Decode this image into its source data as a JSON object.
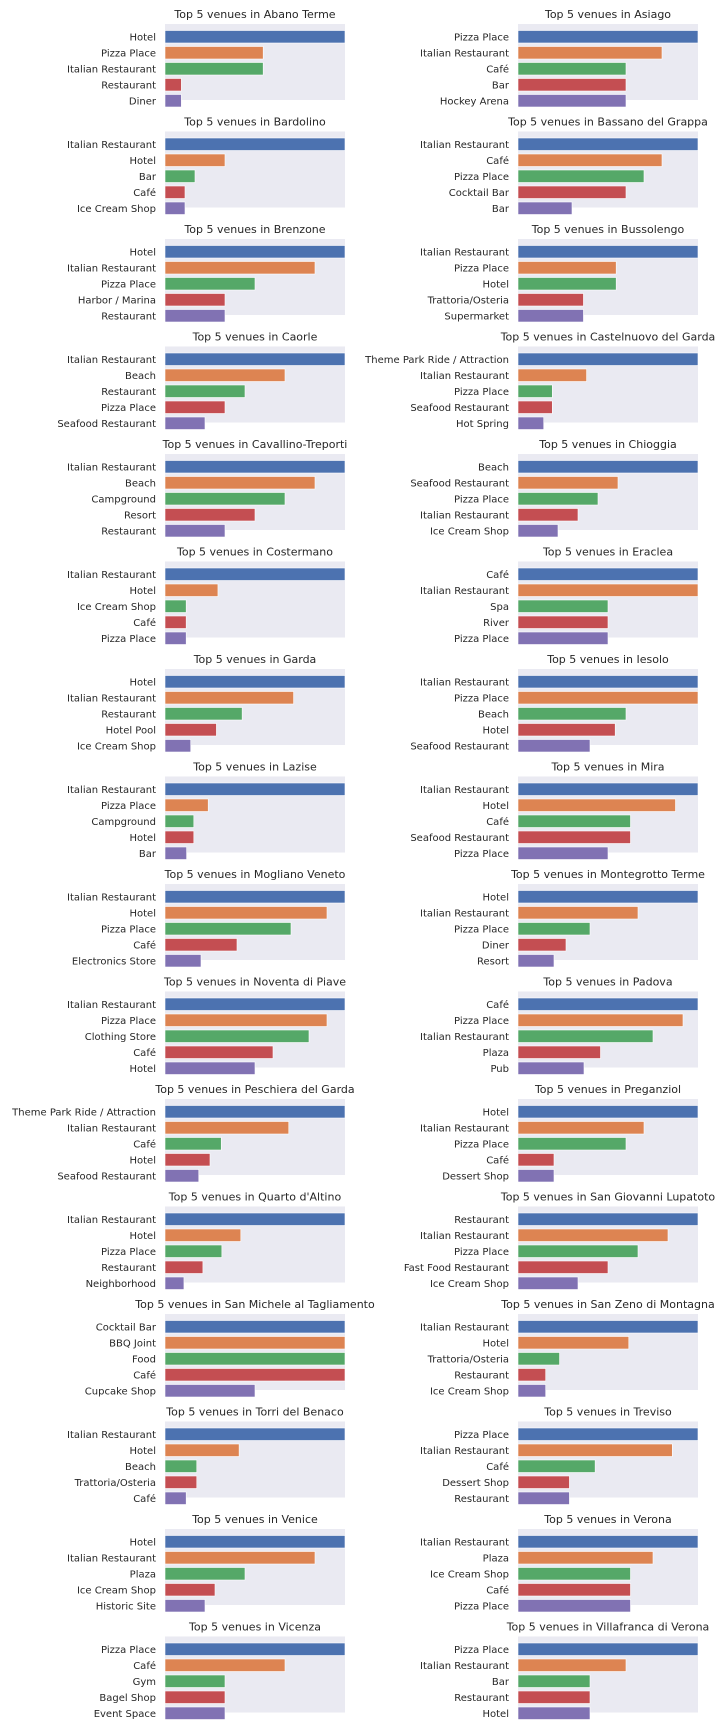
{
  "colors": [
    "#4c72b0",
    "#dd8452",
    "#55a868",
    "#c44e52",
    "#8172b3"
  ],
  "axes_background": "#eaeaf2",
  "chart_data": [
    {
      "type": "bar",
      "orientation": "horizontal",
      "title": "Top 5 venues in Abano Terme",
      "categories": [
        "Hotel",
        "Pizza Place",
        "Italian Restaurant",
        "Restaurant",
        "Diner"
      ],
      "values": [
        11,
        6,
        6,
        1,
        1
      ]
    },
    {
      "type": "bar",
      "orientation": "horizontal",
      "title": "Top 5 venues in Asiago",
      "categories": [
        "Pizza Place",
        "Italian Restaurant",
        "Café",
        "Bar",
        "Hockey Arena"
      ],
      "values": [
        5,
        4,
        3,
        3,
        3
      ]
    },
    {
      "type": "bar",
      "orientation": "horizontal",
      "title": "Top 5 venues in Bardolino",
      "categories": [
        "Italian Restaurant",
        "Hotel",
        "Bar",
        "Café",
        "Ice Cream Shop"
      ],
      "values": [
        18,
        6,
        3,
        2,
        2
      ]
    },
    {
      "type": "bar",
      "orientation": "horizontal",
      "title": "Top 5 venues in Bassano del Grappa",
      "categories": [
        "Italian Restaurant",
        "Café",
        "Pizza Place",
        "Cocktail Bar",
        "Bar"
      ],
      "values": [
        10,
        8,
        7,
        6,
        3
      ]
    },
    {
      "type": "bar",
      "orientation": "horizontal",
      "title": "Top 5 venues in Brenzone",
      "categories": [
        "Hotel",
        "Italian Restaurant",
        "Pizza Place",
        "Harbor / Marina",
        "Restaurant"
      ],
      "values": [
        12,
        10,
        6,
        4,
        4
      ]
    },
    {
      "type": "bar",
      "orientation": "horizontal",
      "title": "Top 5 venues in Bussolengo",
      "categories": [
        "Italian Restaurant",
        "Pizza Place",
        "Hotel",
        "Trattoria/Osteria",
        "Supermarket"
      ],
      "values": [
        11,
        6,
        6,
        4,
        4
      ]
    },
    {
      "type": "bar",
      "orientation": "horizontal",
      "title": "Top 5 venues in Caorle",
      "categories": [
        "Italian Restaurant",
        "Beach",
        "Restaurant",
        "Pizza Place",
        "Seafood Restaurant"
      ],
      "values": [
        9,
        6,
        4,
        3,
        2
      ]
    },
    {
      "type": "bar",
      "orientation": "horizontal",
      "title": "Top 5 venues in Castelnuovo del Garda",
      "categories": [
        "Theme Park Ride / Attraction",
        "Italian Restaurant",
        "Pizza Place",
        "Seafood Restaurant",
        "Hot Spring"
      ],
      "values": [
        21,
        8,
        4,
        4,
        3
      ]
    },
    {
      "type": "bar",
      "orientation": "horizontal",
      "title": "Top 5 venues in Cavallino-Treporti",
      "categories": [
        "Italian Restaurant",
        "Beach",
        "Campground",
        "Resort",
        "Restaurant"
      ],
      "values": [
        12,
        10,
        8,
        6,
        4
      ]
    },
    {
      "type": "bar",
      "orientation": "horizontal",
      "title": "Top 5 venues in Chioggia",
      "categories": [
        "Beach",
        "Seafood Restaurant",
        "Pizza Place",
        "Italian Restaurant",
        "Ice Cream Shop"
      ],
      "values": [
        9,
        5,
        4,
        3,
        2
      ]
    },
    {
      "type": "bar",
      "orientation": "horizontal",
      "title": "Top 5 venues in Costermano",
      "categories": [
        "Italian Restaurant",
        "Hotel",
        "Ice Cream Shop",
        "Café",
        "Pizza Place"
      ],
      "values": [
        17,
        5,
        2,
        2,
        2
      ]
    },
    {
      "type": "bar",
      "orientation": "horizontal",
      "title": "Top 5 venues in Eraclea",
      "categories": [
        "Café",
        "Italian Restaurant",
        "Spa",
        "River",
        "Pizza Place"
      ],
      "values": [
        2,
        2,
        1,
        1,
        1
      ]
    },
    {
      "type": "bar",
      "orientation": "horizontal",
      "title": "Top 5 venues in Garda",
      "categories": [
        "Hotel",
        "Italian Restaurant",
        "Restaurant",
        "Hotel Pool",
        "Ice Cream Shop"
      ],
      "values": [
        14,
        10,
        6,
        4,
        2
      ]
    },
    {
      "type": "bar",
      "orientation": "horizontal",
      "title": "Top 5 venues in Iesolo",
      "categories": [
        "Italian Restaurant",
        "Pizza Place",
        "Beach",
        "Hotel",
        "Seafood Restaurant"
      ],
      "values": [
        5,
        5,
        3,
        2.7,
        2
      ]
    },
    {
      "type": "bar",
      "orientation": "horizontal",
      "title": "Top 5 venues in Lazise",
      "categories": [
        "Italian Restaurant",
        "Pizza Place",
        "Campground",
        "Hotel",
        "Bar"
      ],
      "values": [
        25,
        6,
        4,
        4,
        3
      ]
    },
    {
      "type": "bar",
      "orientation": "horizontal",
      "title": "Top 5 venues in Mira",
      "categories": [
        "Italian Restaurant",
        "Hotel",
        "Café",
        "Seafood Restaurant",
        "Pizza Place"
      ],
      "values": [
        8,
        7,
        5,
        5,
        4
      ]
    },
    {
      "type": "bar",
      "orientation": "horizontal",
      "title": "Top 5 venues in Mogliano Veneto",
      "categories": [
        "Italian Restaurant",
        "Hotel",
        "Pizza Place",
        "Café",
        "Electronics Store"
      ],
      "values": [
        10,
        9,
        7,
        4,
        2
      ]
    },
    {
      "type": "bar",
      "orientation": "horizontal",
      "title": "Top 5 venues in Montegrotto Terme",
      "categories": [
        "Hotel",
        "Italian Restaurant",
        "Pizza Place",
        "Diner",
        "Resort"
      ],
      "values": [
        15,
        10,
        6,
        4,
        3
      ]
    },
    {
      "type": "bar",
      "orientation": "horizontal",
      "title": "Top 5 venues in Noventa di Piave",
      "categories": [
        "Italian Restaurant",
        "Pizza Place",
        "Clothing Store",
        "Café",
        "Hotel"
      ],
      "values": [
        10,
        9,
        8,
        6,
        5
      ]
    },
    {
      "type": "bar",
      "orientation": "horizontal",
      "title": "Top 5 venues in Padova",
      "categories": [
        "Café",
        "Pizza Place",
        "Italian Restaurant",
        "Plaza",
        "Pub"
      ],
      "values": [
        12,
        11,
        9,
        5.5,
        4.4
      ]
    },
    {
      "type": "bar",
      "orientation": "horizontal",
      "title": "Top 5 venues in Peschiera del Garda",
      "categories": [
        "Theme Park Ride / Attraction",
        "Italian Restaurant",
        "Café",
        "Hotel",
        "Seafood Restaurant"
      ],
      "values": [
        16,
        11,
        5,
        4,
        3
      ]
    },
    {
      "type": "bar",
      "orientation": "horizontal",
      "title": "Top 5 venues in Preganziol",
      "categories": [
        "Hotel",
        "Italian Restaurant",
        "Pizza Place",
        "Café",
        "Dessert Shop"
      ],
      "values": [
        10,
        7,
        6,
        2,
        2
      ]
    },
    {
      "type": "bar",
      "orientation": "horizontal",
      "title": "Top 5 venues in Quarto d'Altino",
      "categories": [
        "Italian Restaurant",
        "Hotel",
        "Pizza Place",
        "Restaurant",
        "Neighborhood"
      ],
      "values": [
        19,
        8,
        6,
        4,
        2
      ]
    },
    {
      "type": "bar",
      "orientation": "horizontal",
      "title": "Top 5 venues in San Giovanni Lupatoto",
      "categories": [
        "Restaurant",
        "Italian Restaurant",
        "Pizza Place",
        "Fast Food Restaurant",
        "Ice Cream Shop"
      ],
      "values": [
        12,
        10,
        8,
        6,
        4
      ]
    },
    {
      "type": "bar",
      "orientation": "horizontal",
      "title": "Top 5 venues in San Michele al Tagliamento",
      "categories": [
        "Cocktail Bar",
        "BBQ Joint",
        "Food",
        "Café",
        "Cupcake Shop"
      ],
      "values": [
        2,
        2,
        2,
        2,
        1
      ]
    },
    {
      "type": "bar",
      "orientation": "horizontal",
      "title": "Top 5 venues in San Zeno di Montagna",
      "categories": [
        "Italian Restaurant",
        "Hotel",
        "Trattoria/Osteria",
        "Restaurant",
        "Ice Cream Shop"
      ],
      "values": [
        13,
        8,
        3,
        2,
        2
      ]
    },
    {
      "type": "bar",
      "orientation": "horizontal",
      "title": "Top 5 venues in Torri del Benaco",
      "categories": [
        "Italian Restaurant",
        "Hotel",
        "Beach",
        "Trattoria/Osteria",
        "Café"
      ],
      "values": [
        17,
        7,
        3,
        3,
        2
      ]
    },
    {
      "type": "bar",
      "orientation": "horizontal",
      "title": "Top 5 venues in Treviso",
      "categories": [
        "Pizza Place",
        "Italian Restaurant",
        "Café",
        "Dessert Shop",
        "Restaurant"
      ],
      "values": [
        14,
        12,
        6,
        4,
        4
      ]
    },
    {
      "type": "bar",
      "orientation": "horizontal",
      "title": "Top 5 venues in Venice",
      "categories": [
        "Hotel",
        "Italian Restaurant",
        "Plaza",
        "Ice Cream Shop",
        "Historic Site"
      ],
      "values": [
        18,
        15,
        8,
        5,
        4
      ]
    },
    {
      "type": "bar",
      "orientation": "horizontal",
      "title": "Top 5 venues in Verona",
      "categories": [
        "Italian Restaurant",
        "Plaza",
        "Ice Cream Shop",
        "Café",
        "Pizza Place"
      ],
      "values": [
        16,
        12,
        10,
        10,
        10
      ]
    },
    {
      "type": "bar",
      "orientation": "horizontal",
      "title": "Top 5 venues in Vicenza",
      "categories": [
        "Pizza Place",
        "Café",
        "Gym",
        "Bagel Shop",
        "Event Space"
      ],
      "values": [
        6,
        4,
        2,
        2,
        2
      ]
    },
    {
      "type": "bar",
      "orientation": "horizontal",
      "title": "Top 5 venues in Villafranca di Verona",
      "categories": [
        "Pizza Place",
        "Italian Restaurant",
        "Bar",
        "Restaurant",
        "Hotel"
      ],
      "values": [
        10,
        6,
        4,
        4,
        4
      ]
    }
  ]
}
